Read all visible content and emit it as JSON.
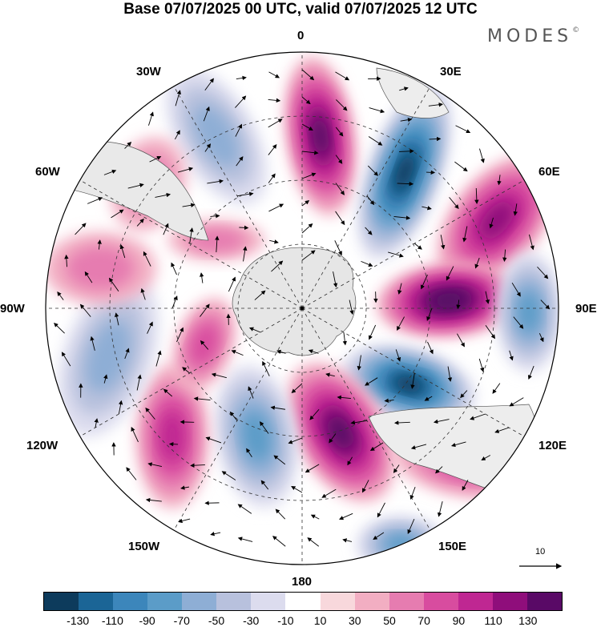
{
  "header": {
    "title": "Base 07/07/2025 00 UTC, valid 07/07/2025 12 UTC",
    "brand": "MODES",
    "brand_mark": "©"
  },
  "map": {
    "projection": "south polar stereographic",
    "longitude_labels": [
      "0",
      "30E",
      "60E",
      "90E",
      "120E",
      "150E",
      "180",
      "150W",
      "120W",
      "90W",
      "60W",
      "30W"
    ],
    "vector_reference": "10",
    "field_anomalies": [
      {
        "id": "a1",
        "sign": "neg",
        "level": -50
      },
      {
        "id": "a2",
        "sign": "pos",
        "level": 110
      },
      {
        "id": "a3",
        "sign": "neg",
        "level": -130
      },
      {
        "id": "a4",
        "sign": "pos",
        "level": 90
      },
      {
        "id": "a5",
        "sign": "pos",
        "level": 130
      },
      {
        "id": "a6",
        "sign": "neg",
        "level": -70
      },
      {
        "id": "a7",
        "sign": "neg",
        "level": -130
      },
      {
        "id": "a8",
        "sign": "pos",
        "level": 110
      },
      {
        "id": "a9",
        "sign": "pos",
        "level": 50
      },
      {
        "id": "a10",
        "sign": "neg",
        "level": -70
      },
      {
        "id": "a11",
        "sign": "pos",
        "level": 70
      },
      {
        "id": "a12",
        "sign": "neg",
        "level": -50
      },
      {
        "id": "a13",
        "sign": "pos",
        "level": 50
      },
      {
        "id": "a14",
        "sign": "neg",
        "level": -70
      },
      {
        "id": "a15",
        "sign": "pos",
        "level": 30
      },
      {
        "id": "a16",
        "sign": "pos",
        "level": 30
      },
      {
        "id": "a17",
        "sign": "pos",
        "level": 30
      }
    ]
  },
  "colorbar": {
    "colors": [
      "#0d3b5c",
      "#1b6596",
      "#3c86bb",
      "#5b9cc8",
      "#8eaed5",
      "#b8c1dd",
      "#dcdcee",
      "#ffffff",
      "#f8d8dc",
      "#f2aec2",
      "#e67cb0",
      "#d84c9f",
      "#bf2792",
      "#8f0e7b",
      "#590966"
    ],
    "ticks": [
      "-130",
      "-110",
      "-90",
      "-70",
      "-50",
      "-30",
      "-10",
      "10",
      "30",
      "50",
      "70",
      "90",
      "110",
      "130"
    ]
  }
}
